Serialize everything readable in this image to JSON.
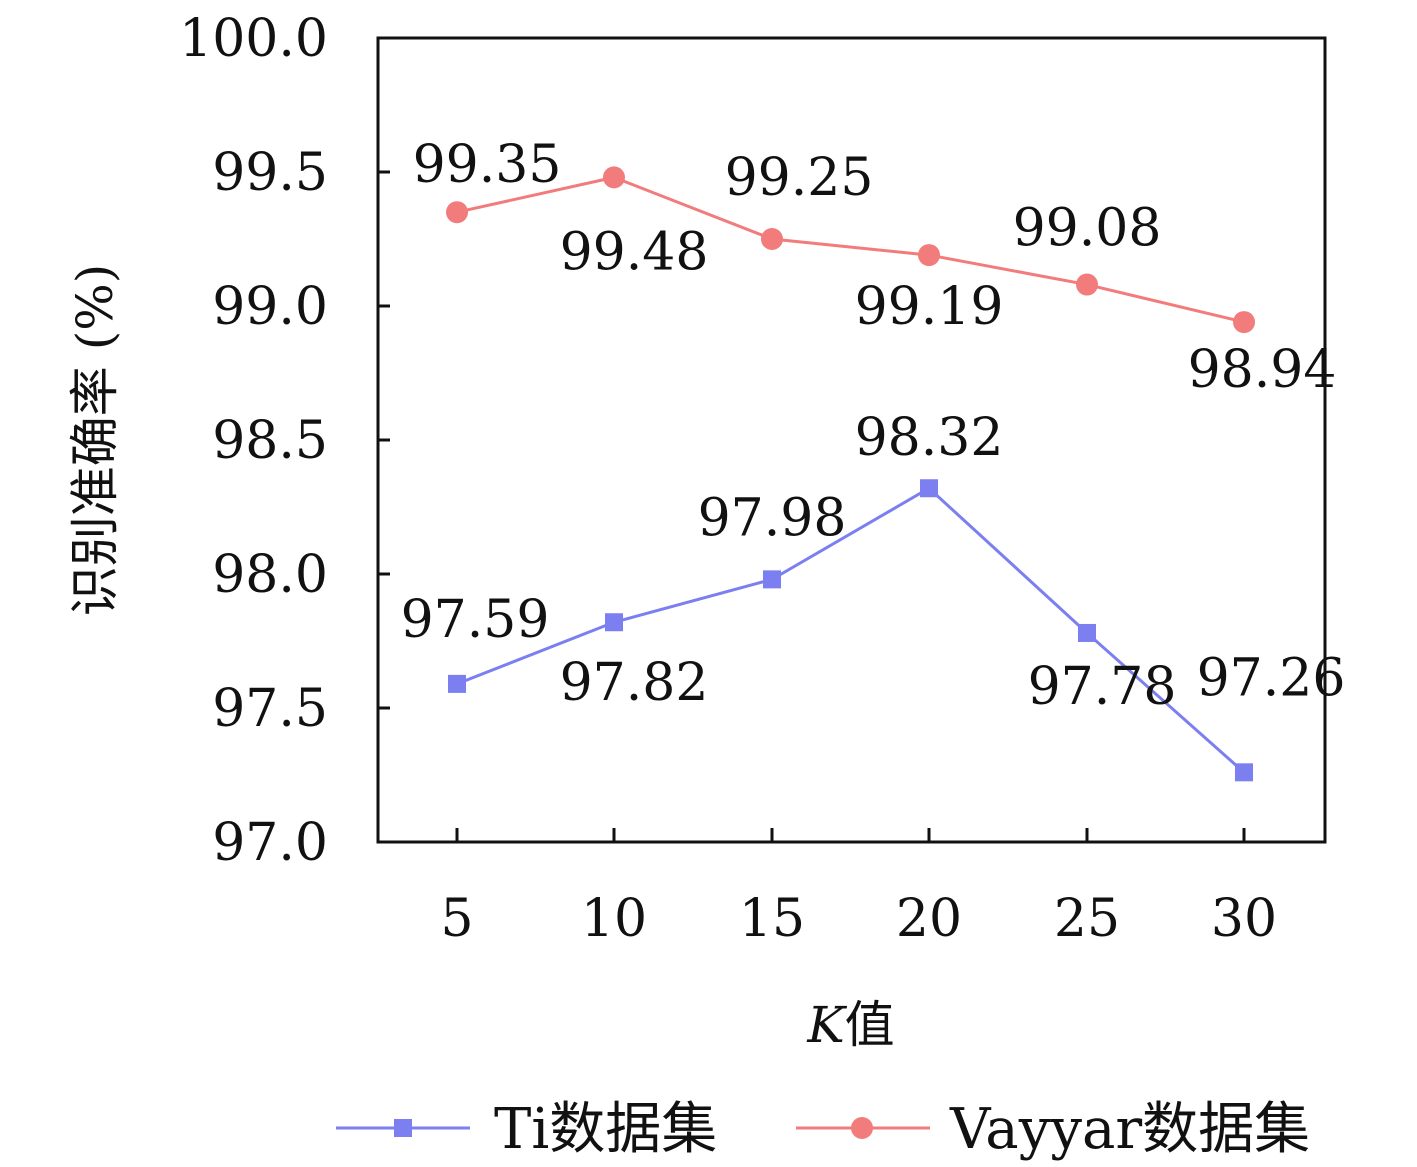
{
  "chart_data": {
    "type": "line",
    "x": [
      5,
      10,
      15,
      20,
      25,
      30
    ],
    "x_ticks": [
      "5",
      "10",
      "15",
      "20",
      "25",
      "30"
    ],
    "y_ticks": [
      "97.0",
      "97.5",
      "98.0",
      "98.5",
      "99.0",
      "99.5",
      "100.0"
    ],
    "ylim": [
      97.0,
      100.0
    ],
    "xlabel_italic": "K",
    "xlabel_suffix": "值",
    "ylabel": "识别准确率 (%)",
    "grid": false,
    "legend_position": "bottom",
    "series": [
      {
        "name": "Ti数据集",
        "marker": "square",
        "color": "#7b7ff0",
        "values": [
          97.59,
          97.82,
          97.98,
          98.32,
          97.78,
          97.26
        ],
        "labels": [
          "97.59",
          "97.82",
          "97.98",
          "98.32",
          "97.78",
          "97.26"
        ]
      },
      {
        "name": "Vayyar数据集",
        "marker": "circle",
        "color": "#f27b7b",
        "values": [
          99.35,
          99.48,
          99.25,
          99.19,
          99.08,
          98.94
        ],
        "labels": [
          "99.35",
          "99.48",
          "99.25",
          "99.19",
          "99.08",
          "98.94"
        ]
      }
    ]
  }
}
